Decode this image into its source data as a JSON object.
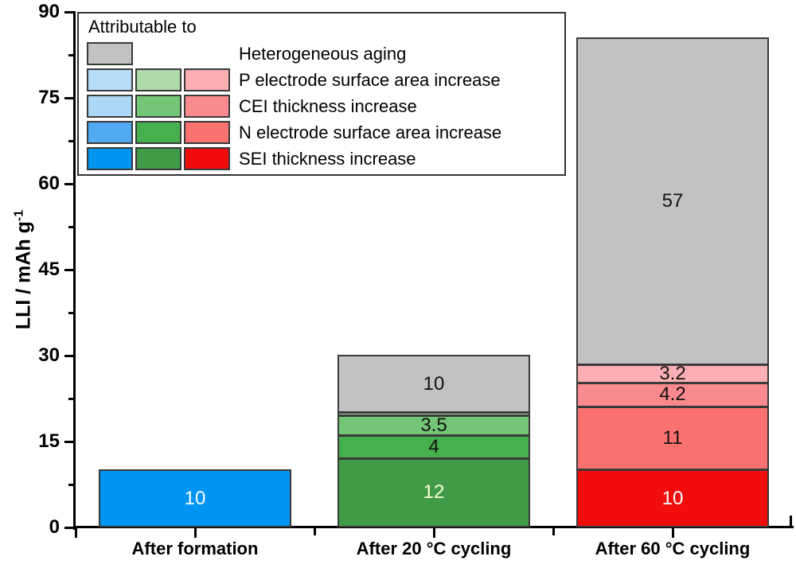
{
  "y_axis": {
    "label_base": "LLI / mAh g",
    "label_sup": "-1",
    "ticks": [
      0,
      15,
      30,
      45,
      60,
      75,
      90
    ],
    "minor_ticks": [
      7.5,
      22.5,
      37.5,
      52.5,
      67.5,
      82.5
    ],
    "range": [
      0,
      90
    ]
  },
  "legend": {
    "title": "Attributable to",
    "rows": [
      {
        "label": "Heterogeneous aging",
        "swatches": [
          "#C2C2C4",
          null,
          null
        ]
      },
      {
        "label": "P electrode surface area increase",
        "swatches": [
          "#B5DDF8",
          "#AEDBA9",
          "#FBAFB4"
        ]
      },
      {
        "label": "CEI thickness increase",
        "swatches": [
          "#ABD8F7",
          "#74C677",
          "#FA8A8D"
        ]
      },
      {
        "label": "N electrode surface area increase",
        "swatches": [
          "#4FAAF2",
          "#47B04E",
          "#FA7170"
        ]
      },
      {
        "label": "SEI thickness increase",
        "swatches": [
          "#0095F2",
          "#3F9B46",
          "#F20D0D"
        ]
      }
    ]
  },
  "chart_data": {
    "type": "bar",
    "stacked": true,
    "ylabel": "LLI / mAh g⁻¹",
    "ylim": [
      0,
      90
    ],
    "grid": false,
    "legend_position": "top-left",
    "categories": [
      "After formation",
      "After 20 °C cycling",
      "After 60 °C cycling"
    ],
    "bars": [
      {
        "category": "After formation",
        "total": 10,
        "segments": [
          {
            "name": "SEI thickness increase",
            "value": 10,
            "label": "10",
            "color": "#0095F2",
            "label_color": "#FFFFFF"
          }
        ]
      },
      {
        "category": "After 20 °C cycling",
        "total": 30,
        "segments": [
          {
            "name": "SEI thickness increase",
            "value": 12,
            "label": "12",
            "color": "#3F9B46",
            "label_color": "#FDFFD6"
          },
          {
            "name": "N electrode surface area increase",
            "value": 4,
            "label": "4",
            "color": "#47B04E",
            "label_color": "#111111"
          },
          {
            "name": "CEI thickness increase",
            "value": 3.5,
            "label": "3.5",
            "color": "#74C677",
            "label_color": "#111111"
          },
          {
            "name": "P electrode surface area increase",
            "value": 0.5,
            "label": "",
            "color": "#AEDBA9",
            "label_color": "#111111"
          },
          {
            "name": "Heterogeneous aging",
            "value": 10,
            "label": "10",
            "color": "#C2C2C4",
            "label_color": "#111111"
          }
        ]
      },
      {
        "category": "After 60 °C cycling",
        "total": 85.4,
        "segments": [
          {
            "name": "SEI thickness increase",
            "value": 10,
            "label": "10",
            "color": "#F20D0D",
            "label_color": "#FFFFFF"
          },
          {
            "name": "N electrode surface area increase",
            "value": 11,
            "label": "11",
            "color": "#FA7170",
            "label_color": "#111111"
          },
          {
            "name": "CEI thickness increase",
            "value": 4.2,
            "label": "4.2",
            "color": "#FA8A8D",
            "label_color": "#111111"
          },
          {
            "name": "P electrode surface area increase",
            "value": 3.2,
            "label": "3.2",
            "color": "#FBAFB4",
            "label_color": "#111111"
          },
          {
            "name": "Heterogeneous aging",
            "value": 57,
            "label": "57",
            "color": "#C2C2C4",
            "label_color": "#111111"
          }
        ]
      }
    ]
  }
}
